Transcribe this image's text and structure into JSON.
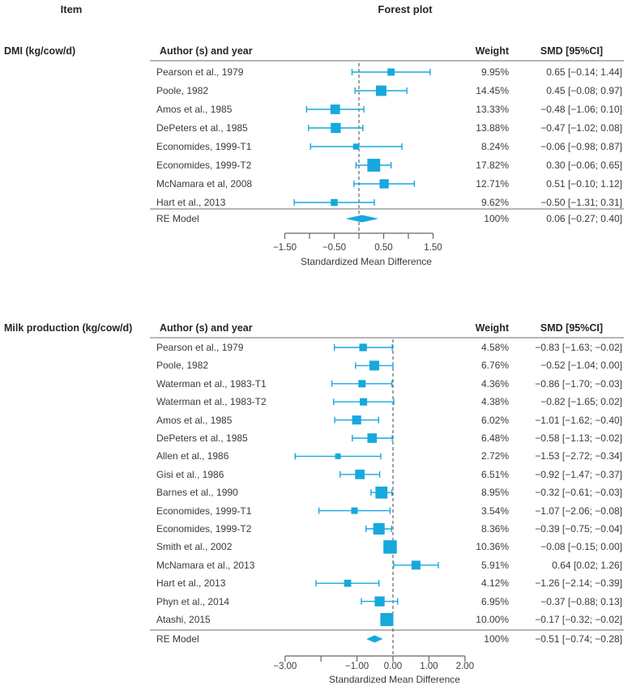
{
  "page": {
    "item_header": "Item",
    "forest_plot_header": "Forest plot"
  },
  "columns": {
    "author": "Author (s) and year",
    "weight": "Weight",
    "smd": "SMD [95%CI]"
  },
  "colors": {
    "marker": "#17A8DE",
    "text": "#3A3A3A",
    "rule": "#8A8A8A",
    "axis": "#666666",
    "dashed": "#444444"
  },
  "chart_data": [
    {
      "type": "forest",
      "panel_label": "DMI (kg/cow/d)",
      "axis": {
        "xlabel": "Standardized Mean Difference",
        "range": [
          -1.5,
          1.5
        ],
        "zero_line": 0,
        "ticks": [
          {
            "v": -1.5,
            "label": "−1.50"
          },
          {
            "v": -1.0,
            "label": ""
          },
          {
            "v": -0.5,
            "label": "−0.50"
          },
          {
            "v": 0.0,
            "label": ""
          },
          {
            "v": 0.5,
            "label": "0.50"
          },
          {
            "v": 1.0,
            "label": ""
          },
          {
            "v": 1.5,
            "label": "1.50"
          }
        ]
      },
      "studies": [
        {
          "author": "Pearson et al., 1979",
          "weight_pct": 9.95,
          "weight_label": "9.95%",
          "smd": 0.65,
          "ci_low": -0.14,
          "ci_high": 1.44,
          "smd_label": "0.65 [−0.14; 1.44]"
        },
        {
          "author": "Poole, 1982",
          "weight_pct": 14.45,
          "weight_label": "14.45%",
          "smd": 0.45,
          "ci_low": -0.08,
          "ci_high": 0.97,
          "smd_label": "0.45 [−0.08; 0.97]"
        },
        {
          "author": "Amos et al., 1985",
          "weight_pct": 13.33,
          "weight_label": "13.33%",
          "smd": -0.48,
          "ci_low": -1.06,
          "ci_high": 0.1,
          "smd_label": "−0.48 [−1.06; 0.10]"
        },
        {
          "author": "DePeters et al., 1985",
          "weight_pct": 13.88,
          "weight_label": "13.88%",
          "smd": -0.47,
          "ci_low": -1.02,
          "ci_high": 0.08,
          "smd_label": "−0.47 [−1.02; 0.08]"
        },
        {
          "author": "Economides, 1999-T1",
          "weight_pct": 8.24,
          "weight_label": "8.24%",
          "smd": -0.06,
          "ci_low": -0.98,
          "ci_high": 0.87,
          "smd_label": "−0.06 [−0.98; 0.87]"
        },
        {
          "author": "Economides, 1999-T2",
          "weight_pct": 17.82,
          "weight_label": "17.82%",
          "smd": 0.3,
          "ci_low": -0.06,
          "ci_high": 0.65,
          "smd_label": "0.30 [−0.06; 0.65]"
        },
        {
          "author": "McNamara et al, 2008",
          "weight_pct": 12.71,
          "weight_label": "12.71%",
          "smd": 0.51,
          "ci_low": -0.1,
          "ci_high": 1.12,
          "smd_label": "0.51 [−0.10; 1.12]"
        },
        {
          "author": "Hart et al., 2013",
          "weight_pct": 9.62,
          "weight_label": "9.62%",
          "smd": -0.5,
          "ci_low": -1.31,
          "ci_high": 0.31,
          "smd_label": "−0.50 [−1.31; 0.31]"
        }
      ],
      "summary": {
        "label": "RE Model",
        "weight_label": "100%",
        "smd": 0.06,
        "ci_low": -0.27,
        "ci_high": 0.4,
        "smd_label": "0.06 [−0.27; 0.40]"
      }
    },
    {
      "type": "forest",
      "panel_label": "Milk production (kg/cow/d)",
      "axis": {
        "xlabel": "Standardized Mean Difference",
        "range": [
          -3.0,
          2.0
        ],
        "zero_line": 0,
        "ticks": [
          {
            "v": -3.0,
            "label": "−3.00"
          },
          {
            "v": -2.0,
            "label": ""
          },
          {
            "v": -1.0,
            "label": "−1.00"
          },
          {
            "v": 0.0,
            "label": "0.00"
          },
          {
            "v": 1.0,
            "label": "1.00"
          },
          {
            "v": 2.0,
            "label": "2.00"
          }
        ]
      },
      "studies": [
        {
          "author": "Pearson et al., 1979",
          "weight_pct": 4.58,
          "weight_label": "4.58%",
          "smd": -0.83,
          "ci_low": -1.63,
          "ci_high": -0.02,
          "smd_label": "−0.83 [−1.63; −0.02]"
        },
        {
          "author": "Poole, 1982",
          "weight_pct": 6.76,
          "weight_label": "6.76%",
          "smd": -0.52,
          "ci_low": -1.04,
          "ci_high": 0.0,
          "smd_label": "−0.52 [−1.04; 0.00]"
        },
        {
          "author": "Waterman et al., 1983-T1",
          "weight_pct": 4.36,
          "weight_label": "4.36%",
          "smd": -0.86,
          "ci_low": -1.7,
          "ci_high": -0.03,
          "smd_label": "−0.86 [−1.70; −0.03]"
        },
        {
          "author": "Waterman et al., 1983-T2",
          "weight_pct": 4.38,
          "weight_label": "4.38%",
          "smd": -0.82,
          "ci_low": -1.65,
          "ci_high": 0.02,
          "smd_label": "−0.82 [−1.65; 0.02]"
        },
        {
          "author": "Amos et al., 1985",
          "weight_pct": 6.02,
          "weight_label": "6.02%",
          "smd": -1.01,
          "ci_low": -1.62,
          "ci_high": -0.4,
          "smd_label": "−1.01 [−1.62; −0.40]"
        },
        {
          "author": "DePeters et al., 1985",
          "weight_pct": 6.48,
          "weight_label": "6.48%",
          "smd": -0.58,
          "ci_low": -1.13,
          "ci_high": -0.02,
          "smd_label": "−0.58 [−1.13; −0.02]"
        },
        {
          "author": "Allen et al., 1986",
          "weight_pct": 2.72,
          "weight_label": "2.72%",
          "smd": -1.53,
          "ci_low": -2.72,
          "ci_high": -0.34,
          "smd_label": "−1.53 [−2.72; −0.34]"
        },
        {
          "author": "Gisi et al., 1986",
          "weight_pct": 6.51,
          "weight_label": "6.51%",
          "smd": -0.92,
          "ci_low": -1.47,
          "ci_high": -0.37,
          "smd_label": "−0.92 [−1.47; −0.37]"
        },
        {
          "author": "Barnes et al., 1990",
          "weight_pct": 8.95,
          "weight_label": "8.95%",
          "smd": -0.32,
          "ci_low": -0.61,
          "ci_high": -0.03,
          "smd_label": "−0.32 [−0.61; −0.03]"
        },
        {
          "author": "Economides, 1999-T1",
          "weight_pct": 3.54,
          "weight_label": "3.54%",
          "smd": -1.07,
          "ci_low": -2.06,
          "ci_high": -0.08,
          "smd_label": "−1.07 [−2.06; −0.08]"
        },
        {
          "author": "Economides, 1999-T2",
          "weight_pct": 8.36,
          "weight_label": "8.36%",
          "smd": -0.39,
          "ci_low": -0.75,
          "ci_high": -0.04,
          "smd_label": "−0.39 [−0.75; −0.04]"
        },
        {
          "author": "Smith et al., 2002",
          "weight_pct": 10.36,
          "weight_label": "10.36%",
          "smd": -0.08,
          "ci_low": -0.15,
          "ci_high": 0.0,
          "smd_label": "−0.08 [−0.15; 0.00]"
        },
        {
          "author": "McNamara et al., 2013",
          "weight_pct": 5.91,
          "weight_label": "5.91%",
          "smd": 0.64,
          "ci_low": 0.02,
          "ci_high": 1.26,
          "smd_label": "0.64 [0.02; 1.26]"
        },
        {
          "author": "Hart et al., 2013",
          "weight_pct": 4.12,
          "weight_label": "4.12%",
          "smd": -1.26,
          "ci_low": -2.14,
          "ci_high": -0.39,
          "smd_label": "−1.26 [−2.14; −0.39]"
        },
        {
          "author": "Phyn et al., 2014",
          "weight_pct": 6.95,
          "weight_label": "6.95%",
          "smd": -0.37,
          "ci_low": -0.88,
          "ci_high": 0.13,
          "smd_label": "−0.37 [−0.88; 0.13]"
        },
        {
          "author": "Atashi, 2015",
          "weight_pct": 10.0,
          "weight_label": "10.00%",
          "smd": -0.17,
          "ci_low": -0.32,
          "ci_high": -0.02,
          "smd_label": "−0.17 [−0.32; −0.02]"
        }
      ],
      "summary": {
        "label": "RE Model",
        "weight_label": "100%",
        "smd": -0.51,
        "ci_low": -0.74,
        "ci_high": -0.28,
        "smd_label": "−0.51 [−0.74; −0.28]"
      }
    }
  ]
}
